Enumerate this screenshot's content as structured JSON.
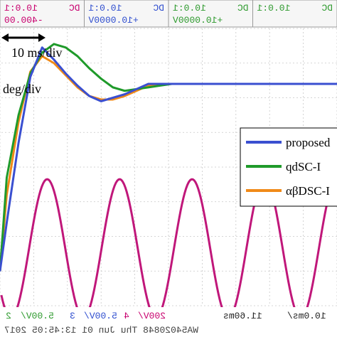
{
  "header": {
    "cells": [
      {
        "coupling": "DC",
        "scale": "10.0:1",
        "offset": "",
        "color": "#2e9a2e"
      },
      {
        "coupling": "DC",
        "scale": "10.0:1",
        "offset": "+10.0000V",
        "color": "#2e9a2e"
      },
      {
        "coupling": "DC",
        "scale": "10.0:1",
        "offset": "+10.0000V",
        "color": "#2f4ecf"
      },
      {
        "coupling": "DC",
        "scale": "10.0:1",
        "offset": "-400.00",
        "color": "#c8006e"
      }
    ]
  },
  "annotations": {
    "time_div": "10 ms/div",
    "deg_div": "deg/div"
  },
  "footer": {
    "ch2": "2",
    "ch2_scale": "5.00V/",
    "ch3": "3",
    "ch3_scale": "5.00V/",
    "ch4": "4",
    "ch4_scale": "200V/",
    "time_offset": "11.60ms",
    "timebase": "10.0ms/",
    "file_stamp": "WA54020848 Thu Jun 01 13:45:05 2017"
  },
  "colors": {
    "proposed": "#3a4fd0",
    "qdsc_green": "#1f9a2a",
    "qdsc_orange": "#f08a18",
    "voltage": "#c0177a",
    "grid": "#c8c8c8",
    "trace_rail": "#1f9a2a"
  },
  "chart_data": {
    "type": "line",
    "mirrored": true,
    "grid": true,
    "legend_position": "right",
    "legend": [
      "proposed",
      "qdSC-I",
      "αβDSC-I"
    ],
    "xlabel": "10 ms/div",
    "ylabel": "deg/div",
    "xlim": [
      0,
      100
    ],
    "ylim": [
      -4,
      4
    ],
    "series": [
      {
        "name": "proposed",
        "color": "#3a4fd0",
        "x": [
          0,
          3.5,
          7,
          10.5,
          14,
          17.5,
          21,
          24.5,
          28,
          31.5,
          35,
          38.5,
          42,
          45.5,
          49,
          52.5,
          56,
          59.5,
          63,
          66.5,
          70,
          73.5,
          77,
          80.5,
          84,
          87.5,
          91,
          94.5,
          98,
          100
        ],
        "y": [
          2.4,
          2.4,
          2.4,
          2.4,
          2.4,
          2.4,
          2.4,
          2.4,
          2.4,
          2.4,
          2.4,
          2.4,
          2.4,
          2.4,
          2.4,
          2.4,
          2.4,
          2.25,
          2.1,
          2.0,
          1.9,
          2.05,
          2.35,
          2.7,
          3.1,
          3.45,
          2.6,
          0.7,
          -1.6,
          -3.0
        ]
      },
      {
        "name": "qdSC-I",
        "color": "#1f9a2a",
        "x": [
          0,
          3.5,
          7,
          10.5,
          14,
          17.5,
          21,
          24.5,
          28,
          31.5,
          35,
          38.5,
          42,
          45.5,
          49,
          52.5,
          56,
          59.5,
          63,
          66.5,
          70,
          73.5,
          77,
          80.5,
          84,
          87.5,
          91,
          94.5,
          98,
          100
        ],
        "y": [
          2.4,
          2.4,
          2.4,
          2.4,
          2.4,
          2.4,
          2.4,
          2.4,
          2.4,
          2.4,
          2.4,
          2.4,
          2.4,
          2.4,
          2.4,
          2.35,
          2.3,
          2.25,
          2.2,
          2.3,
          2.55,
          2.85,
          3.2,
          3.45,
          3.55,
          3.3,
          2.7,
          1.5,
          -0.3,
          -3.0
        ]
      },
      {
        "name": "αβDSC-I",
        "color": "#f08a18",
        "x": [
          0,
          3.5,
          7,
          10.5,
          14,
          17.5,
          21,
          24.5,
          28,
          31.5,
          35,
          38.5,
          42,
          45.5,
          49,
          52.5,
          56,
          59.5,
          63,
          66.5,
          70,
          73.5,
          77,
          80.5,
          84,
          87.5,
          91,
          94.5,
          98,
          100
        ],
        "y": [
          2.4,
          2.4,
          2.4,
          2.4,
          2.4,
          2.4,
          2.4,
          2.4,
          2.4,
          2.4,
          2.4,
          2.4,
          2.4,
          2.4,
          2.4,
          2.4,
          2.35,
          2.2,
          2.05,
          1.95,
          1.95,
          2.05,
          2.3,
          2.65,
          3.0,
          3.2,
          2.75,
          1.3,
          -0.8,
          -3.0
        ]
      },
      {
        "name": "voltage",
        "color": "#c0177a",
        "x": [
          0,
          100
        ],
        "y": [
          0,
          0
        ],
        "amplitude": 2.0,
        "period": 21.5,
        "center": -2.35
      }
    ]
  }
}
